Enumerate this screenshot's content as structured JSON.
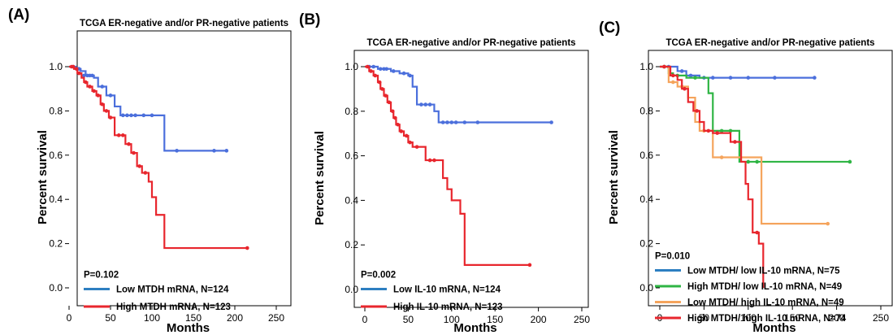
{
  "chart_data": [
    {
      "type": "line",
      "panel_label": "(A)",
      "title": "TCGA ER-negative and/or PR-negative patients",
      "xlabel": "Months",
      "ylabel": "Percent survival",
      "xlim": [
        0,
        250
      ],
      "ylim": [
        0.0,
        1.0
      ],
      "xticks": [
        "0",
        "50",
        "100",
        "150",
        "200",
        "250"
      ],
      "yticks": [
        "0.0",
        "0.2",
        "0.4",
        "0.6",
        "0.8",
        "1.0"
      ],
      "annotation": "P=0.102",
      "legend_position": "bottom-left",
      "series": [
        {
          "name": "Low MTDH mRNA, N=124",
          "color": "#4b6fdc",
          "legend_color": "#2d7fc1",
          "steps": [
            [
              0,
              1.0
            ],
            [
              8,
              0.99
            ],
            [
              14,
              0.98
            ],
            [
              20,
              0.96
            ],
            [
              30,
              0.95
            ],
            [
              35,
              0.91
            ],
            [
              45,
              0.87
            ],
            [
              55,
              0.82
            ],
            [
              62,
              0.78
            ],
            [
              115,
              0.62
            ],
            [
              190,
              0.62
            ]
          ],
          "censors": [
            [
              5,
              1.0
            ],
            [
              10,
              0.99
            ],
            [
              12,
              0.99
            ],
            [
              18,
              0.96
            ],
            [
              22,
              0.96
            ],
            [
              25,
              0.96
            ],
            [
              28,
              0.96
            ],
            [
              40,
              0.91
            ],
            [
              50,
              0.87
            ],
            [
              65,
              0.78
            ],
            [
              70,
              0.78
            ],
            [
              75,
              0.78
            ],
            [
              80,
              0.78
            ],
            [
              90,
              0.78
            ],
            [
              100,
              0.78
            ],
            [
              130,
              0.62
            ],
            [
              175,
              0.62
            ],
            [
              190,
              0.62
            ]
          ]
        },
        {
          "name": "High MTDH mRNA, N=123",
          "color": "#e8262d",
          "legend_color": "#e8262d",
          "steps": [
            [
              0,
              1.0
            ],
            [
              6,
              0.99
            ],
            [
              10,
              0.97
            ],
            [
              15,
              0.95
            ],
            [
              18,
              0.93
            ],
            [
              22,
              0.91
            ],
            [
              28,
              0.89
            ],
            [
              33,
              0.87
            ],
            [
              38,
              0.83
            ],
            [
              42,
              0.8
            ],
            [
              48,
              0.77
            ],
            [
              55,
              0.69
            ],
            [
              68,
              0.65
            ],
            [
              75,
              0.61
            ],
            [
              82,
              0.55
            ],
            [
              88,
              0.52
            ],
            [
              96,
              0.48
            ],
            [
              100,
              0.41
            ],
            [
              105,
              0.33
            ],
            [
              115,
              0.18
            ],
            [
              215,
              0.18
            ]
          ],
          "censors": [
            [
              3,
              1.0
            ],
            [
              5,
              1.0
            ],
            [
              9,
              0.99
            ],
            [
              12,
              0.97
            ],
            [
              20,
              0.93
            ],
            [
              25,
              0.91
            ],
            [
              30,
              0.89
            ],
            [
              35,
              0.87
            ],
            [
              40,
              0.83
            ],
            [
              45,
              0.8
            ],
            [
              50,
              0.77
            ],
            [
              60,
              0.69
            ],
            [
              65,
              0.69
            ],
            [
              72,
              0.65
            ],
            [
              78,
              0.61
            ],
            [
              85,
              0.55
            ],
            [
              92,
              0.52
            ],
            [
              215,
              0.18
            ]
          ]
        }
      ]
    },
    {
      "type": "line",
      "panel_label": "(B)",
      "title": "TCGA ER-negative and/or PR-negative patients",
      "xlabel": "Months",
      "ylabel": "Percent survival",
      "xlim": [
        0,
        250
      ],
      "ylim": [
        0.0,
        1.0
      ],
      "xticks": [
        "0",
        "50",
        "100",
        "150",
        "200",
        "250"
      ],
      "yticks": [
        "0.0",
        "0.2",
        "0.4",
        "0.6",
        "0.8",
        "1.0"
      ],
      "annotation": "P=0.002",
      "legend_position": "bottom-left",
      "series": [
        {
          "name": "Low IL-10 mRNA, N=124",
          "color": "#4b6fdc",
          "legend_color": "#2d7fc1",
          "steps": [
            [
              0,
              1.0
            ],
            [
              15,
              0.99
            ],
            [
              30,
              0.98
            ],
            [
              40,
              0.97
            ],
            [
              50,
              0.96
            ],
            [
              55,
              0.91
            ],
            [
              60,
              0.83
            ],
            [
              80,
              0.8
            ],
            [
              85,
              0.75
            ],
            [
              215,
              0.75
            ]
          ],
          "censors": [
            [
              5,
              1.0
            ],
            [
              10,
              1.0
            ],
            [
              18,
              0.99
            ],
            [
              22,
              0.99
            ],
            [
              25,
              0.99
            ],
            [
              33,
              0.98
            ],
            [
              45,
              0.97
            ],
            [
              52,
              0.96
            ],
            [
              65,
              0.83
            ],
            [
              70,
              0.83
            ],
            [
              75,
              0.83
            ],
            [
              90,
              0.75
            ],
            [
              95,
              0.75
            ],
            [
              100,
              0.75
            ],
            [
              105,
              0.75
            ],
            [
              115,
              0.75
            ],
            [
              130,
              0.75
            ],
            [
              215,
              0.75
            ]
          ]
        },
        {
          "name": "High IL-10 mRNA, N=123",
          "color": "#e8262d",
          "legend_color": "#e8262d",
          "steps": [
            [
              0,
              1.0
            ],
            [
              5,
              0.98
            ],
            [
              10,
              0.96
            ],
            [
              15,
              0.93
            ],
            [
              18,
              0.9
            ],
            [
              22,
              0.87
            ],
            [
              26,
              0.84
            ],
            [
              30,
              0.8
            ],
            [
              33,
              0.77
            ],
            [
              36,
              0.74
            ],
            [
              40,
              0.71
            ],
            [
              45,
              0.69
            ],
            [
              50,
              0.66
            ],
            [
              55,
              0.64
            ],
            [
              70,
              0.58
            ],
            [
              90,
              0.5
            ],
            [
              95,
              0.45
            ],
            [
              100,
              0.4
            ],
            [
              110,
              0.34
            ],
            [
              115,
              0.11
            ],
            [
              190,
              0.11
            ]
          ],
          "censors": [
            [
              3,
              1.0
            ],
            [
              7,
              0.98
            ],
            [
              12,
              0.96
            ],
            [
              17,
              0.93
            ],
            [
              20,
              0.9
            ],
            [
              24,
              0.87
            ],
            [
              28,
              0.84
            ],
            [
              32,
              0.8
            ],
            [
              35,
              0.77
            ],
            [
              38,
              0.74
            ],
            [
              42,
              0.71
            ],
            [
              48,
              0.69
            ],
            [
              52,
              0.66
            ],
            [
              60,
              0.64
            ],
            [
              75,
              0.58
            ],
            [
              80,
              0.58
            ],
            [
              190,
              0.11
            ]
          ]
        }
      ]
    },
    {
      "type": "line",
      "panel_label": "(C)",
      "title": "TCGA ER-negative and/or PR-negative patients",
      "xlabel": "Months",
      "ylabel": "Percent survival",
      "xlim": [
        0,
        250
      ],
      "ylim": [
        0.0,
        1.0
      ],
      "xticks": [
        "0",
        "50",
        "100",
        "150",
        "200",
        "250"
      ],
      "yticks": [
        "0.0",
        "0.2",
        "0.4",
        "0.6",
        "0.8",
        "1.0"
      ],
      "annotation": "P=0.010",
      "legend_position": "bottom-left",
      "series": [
        {
          "name": "Low MTDH/ low IL-10 mRNA, N=75",
          "color": "#4b6fdc",
          "legend_color": "#2d7fc1",
          "steps": [
            [
              0,
              1.0
            ],
            [
              20,
              0.98
            ],
            [
              30,
              0.96
            ],
            [
              45,
              0.95
            ],
            [
              175,
              0.95
            ]
          ],
          "censors": [
            [
              5,
              1.0
            ],
            [
              10,
              1.0
            ],
            [
              25,
              0.98
            ],
            [
              35,
              0.96
            ],
            [
              50,
              0.95
            ],
            [
              60,
              0.95
            ],
            [
              80,
              0.95
            ],
            [
              100,
              0.95
            ],
            [
              130,
              0.95
            ],
            [
              175,
              0.95
            ]
          ]
        },
        {
          "name": "High MTDH/  low IL-10 mRNA, N=49",
          "color": "#2fb544",
          "legend_color": "#2fb544",
          "steps": [
            [
              0,
              1.0
            ],
            [
              10,
              0.97
            ],
            [
              15,
              0.96
            ],
            [
              30,
              0.95
            ],
            [
              55,
              0.88
            ],
            [
              60,
              0.71
            ],
            [
              90,
              0.57
            ],
            [
              215,
              0.57
            ]
          ],
          "censors": [
            [
              5,
              1.0
            ],
            [
              20,
              0.96
            ],
            [
              40,
              0.95
            ],
            [
              70,
              0.71
            ],
            [
              80,
              0.71
            ],
            [
              100,
              0.57
            ],
            [
              110,
              0.57
            ],
            [
              215,
              0.57
            ]
          ]
        },
        {
          "name": "Low MTDH/ high IL-10 mRNA, N=49",
          "color": "#f5a45c",
          "legend_color": "#f5a45c",
          "steps": [
            [
              0,
              1.0
            ],
            [
              10,
              0.93
            ],
            [
              20,
              0.91
            ],
            [
              32,
              0.86
            ],
            [
              40,
              0.75
            ],
            [
              45,
              0.71
            ],
            [
              60,
              0.59
            ],
            [
              80,
              0.59
            ],
            [
              115,
              0.29
            ],
            [
              190,
              0.29
            ]
          ],
          "censors": [
            [
              5,
              1.0
            ],
            [
              15,
              0.93
            ],
            [
              25,
              0.91
            ],
            [
              50,
              0.71
            ],
            [
              70,
              0.59
            ],
            [
              190,
              0.29
            ]
          ]
        },
        {
          "name": "High MTDH/ high IL-10 mRNA, N=74",
          "color": "#e8262d",
          "legend_color": "#e8262d",
          "steps": [
            [
              0,
              1.0
            ],
            [
              12,
              0.96
            ],
            [
              20,
              0.94
            ],
            [
              25,
              0.9
            ],
            [
              32,
              0.84
            ],
            [
              38,
              0.8
            ],
            [
              45,
              0.75
            ],
            [
              50,
              0.71
            ],
            [
              60,
              0.7
            ],
            [
              80,
              0.66
            ],
            [
              92,
              0.57
            ],
            [
              97,
              0.47
            ],
            [
              100,
              0.4
            ],
            [
              105,
              0.25
            ],
            [
              112,
              0.2
            ],
            [
              117,
              0.0
            ]
          ],
          "censors": [
            [
              5,
              1.0
            ],
            [
              15,
              0.96
            ],
            [
              28,
              0.9
            ],
            [
              42,
              0.8
            ],
            [
              55,
              0.71
            ],
            [
              65,
              0.7
            ],
            [
              85,
              0.66
            ],
            [
              110,
              0.25
            ]
          ]
        }
      ]
    }
  ]
}
